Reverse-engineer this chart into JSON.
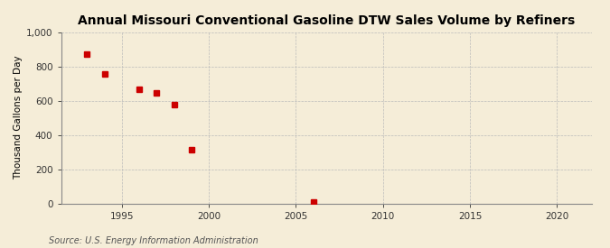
{
  "title": "Annual Missouri Conventional Gasoline DTW Sales Volume by Refiners",
  "ylabel": "Thousand Gallons per Day",
  "source": "Source: U.S. Energy Information Administration",
  "x_values": [
    1993,
    1994,
    1996,
    1997,
    1998,
    1999,
    2006
  ],
  "y_values": [
    870,
    755,
    665,
    648,
    578,
    315,
    10
  ],
  "marker_color": "#cc0000",
  "marker_size": 4,
  "xlim": [
    1991.5,
    2022
  ],
  "ylim": [
    0,
    1000
  ],
  "xticks": [
    1995,
    2000,
    2005,
    2010,
    2015,
    2020
  ],
  "yticks": [
    0,
    200,
    400,
    600,
    800,
    1000
  ],
  "ytick_labels": [
    "0",
    "200",
    "400",
    "600",
    "800",
    "1,000"
  ],
  "background_color": "#f5edd8",
  "grid_color": "#bbbbbb",
  "title_fontsize": 10,
  "label_fontsize": 7.5,
  "tick_fontsize": 7.5,
  "source_fontsize": 7
}
